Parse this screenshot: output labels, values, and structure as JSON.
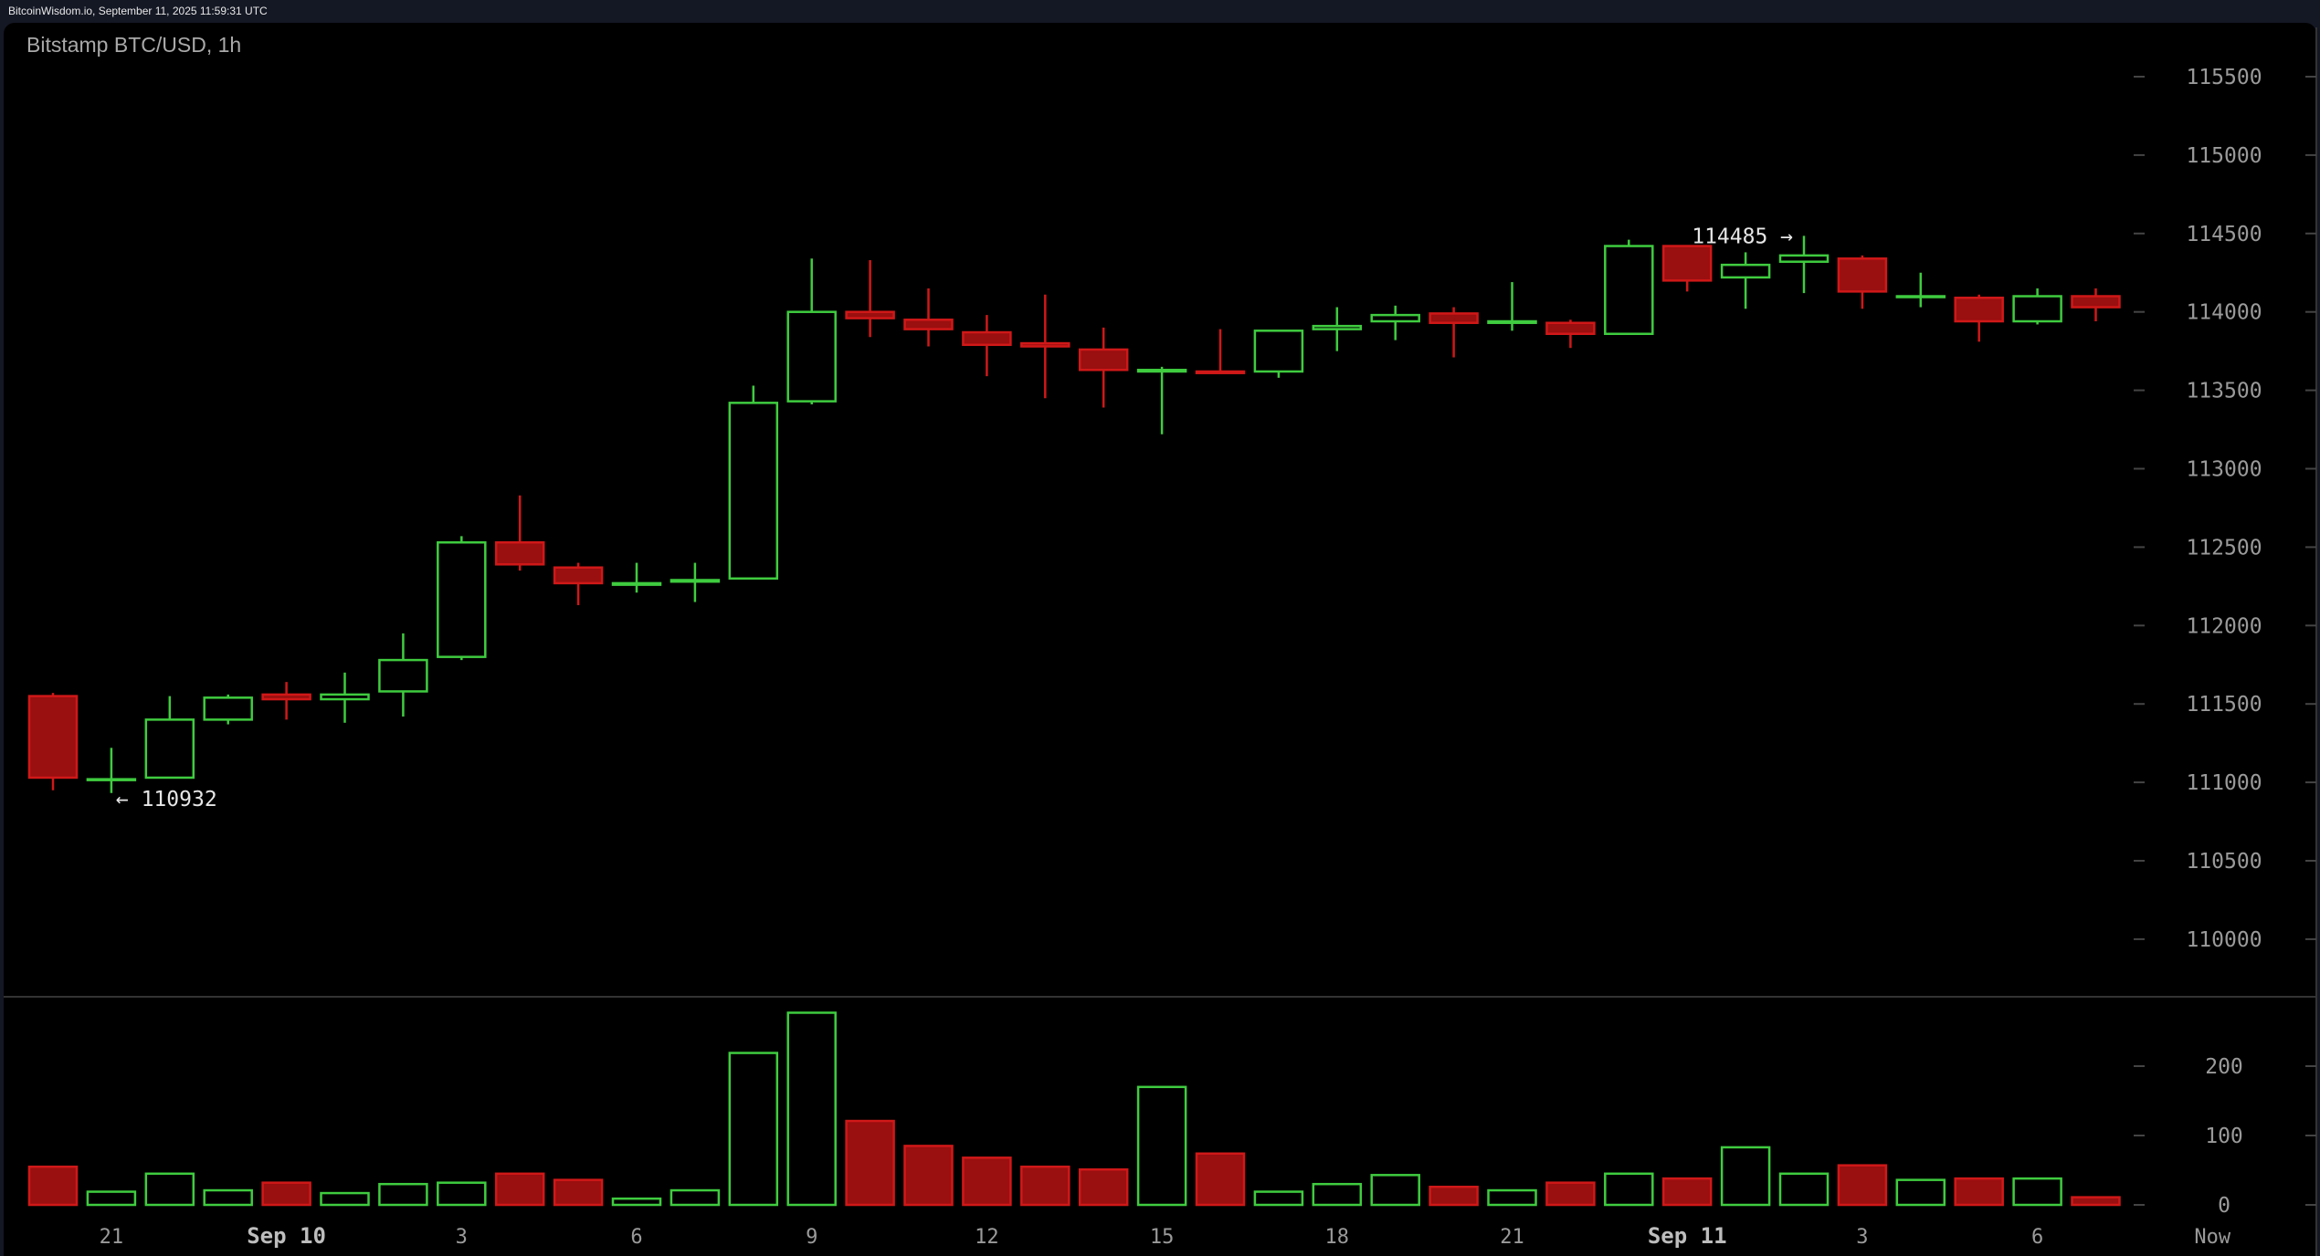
{
  "topbar": {
    "text": "BitcoinWisdom.io, September 11, 2025 11:59:31 UTC"
  },
  "chart": {
    "title": "Bitstamp BTC/USD, 1h"
  },
  "colors": {
    "up": "#3fcc3f",
    "down": "#d01818",
    "down_fill": "#9a0f10",
    "axis_text": "#9a9a9a",
    "background": "#000000"
  },
  "chart_data": [
    {
      "type": "candlestick",
      "title": "Bitstamp BTC/USD, 1h",
      "y_ticks": [
        110000,
        110500,
        111000,
        111500,
        112000,
        112500,
        113000,
        113500,
        114000,
        114500,
        115000,
        115500
      ],
      "x_tick_labels": [
        {
          "index": 1,
          "label": "21"
        },
        {
          "index": 4,
          "label": "Sep 10"
        },
        {
          "index": 7,
          "label": "3"
        },
        {
          "index": 10,
          "label": "6"
        },
        {
          "index": 13,
          "label": "9"
        },
        {
          "index": 16,
          "label": "12"
        },
        {
          "index": 19,
          "label": "15"
        },
        {
          "index": 22,
          "label": "18"
        },
        {
          "index": 25,
          "label": "21"
        },
        {
          "index": 28,
          "label": "Sep 11"
        },
        {
          "index": 31,
          "label": "3"
        },
        {
          "index": 34,
          "label": "6"
        },
        {
          "index": 37,
          "label": "Now"
        }
      ],
      "annotations": {
        "high": {
          "index": 30,
          "value": 114485,
          "label": "114485 →"
        },
        "low": {
          "index": 1,
          "value": 110932,
          "label": "← 110932"
        }
      },
      "candles": [
        [
          111550,
          111570,
          110950,
          111030
        ],
        [
          111020,
          111220,
          110932,
          111020
        ],
        [
          111030,
          111550,
          111030,
          111400
        ],
        [
          111400,
          111560,
          111370,
          111540
        ],
        [
          111560,
          111640,
          111400,
          111530
        ],
        [
          111530,
          111700,
          111380,
          111560
        ],
        [
          111580,
          111950,
          111420,
          111780
        ],
        [
          111800,
          112570,
          111780,
          112530
        ],
        [
          112530,
          112830,
          112350,
          112390
        ],
        [
          112370,
          112400,
          112130,
          112270
        ],
        [
          112260,
          112400,
          112210,
          112270
        ],
        [
          112280,
          112400,
          112150,
          112290
        ],
        [
          112300,
          113530,
          112300,
          113420
        ],
        [
          113430,
          114340,
          113410,
          114000
        ],
        [
          114000,
          114330,
          113840,
          113960
        ],
        [
          113950,
          114150,
          113780,
          113890
        ],
        [
          113870,
          113980,
          113590,
          113790
        ],
        [
          113800,
          114110,
          113450,
          113780
        ],
        [
          113760,
          113900,
          113390,
          113630
        ],
        [
          113620,
          113650,
          113220,
          113630
        ],
        [
          113620,
          113890,
          113610,
          113610
        ],
        [
          113620,
          113880,
          113580,
          113880
        ],
        [
          113890,
          114030,
          113750,
          113910
        ],
        [
          113940,
          114040,
          113820,
          113980
        ],
        [
          113990,
          114030,
          113710,
          113930
        ],
        [
          113930,
          114190,
          113880,
          113940
        ],
        [
          113930,
          113950,
          113770,
          113860
        ],
        [
          113860,
          114460,
          113860,
          114420
        ],
        [
          114420,
          114420,
          114130,
          114200
        ],
        [
          114220,
          114380,
          114020,
          114300
        ],
        [
          114320,
          114485,
          114120,
          114360
        ],
        [
          114340,
          114360,
          114020,
          114130
        ],
        [
          114100,
          114250,
          114030,
          114100
        ],
        [
          114090,
          114110,
          113810,
          113940
        ],
        [
          113940,
          114150,
          113920,
          114100
        ],
        [
          114100,
          114150,
          113940,
          114030
        ]
      ]
    },
    {
      "type": "bar",
      "y_ticks": [
        0,
        100,
        200
      ],
      "values": [
        55,
        19,
        45,
        21,
        32,
        17,
        30,
        32,
        45,
        36,
        9,
        21,
        219,
        277,
        121,
        85,
        68,
        55,
        51,
        170,
        74,
        19,
        30,
        43,
        26,
        21,
        32,
        45,
        38,
        83,
        45,
        57,
        36,
        38,
        38,
        11
      ]
    }
  ]
}
